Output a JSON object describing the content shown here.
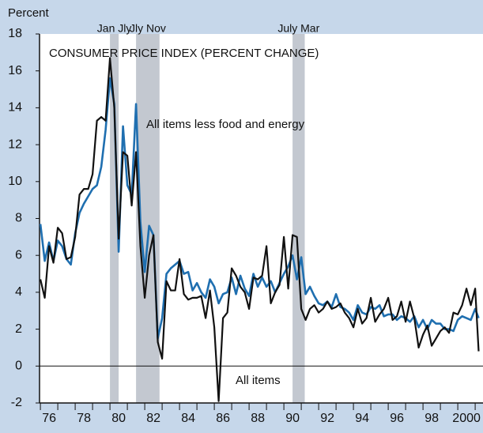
{
  "chart_data": {
    "type": "line",
    "title": "CONSUMER PRICE INDEX (PERCENT CHANGE)",
    "y_label": "Percent",
    "x": [
      1976.0,
      1976.25,
      1976.5,
      1976.75,
      1977.0,
      1977.25,
      1977.5,
      1977.75,
      1978.0,
      1978.25,
      1978.5,
      1978.75,
      1979.0,
      1979.25,
      1979.5,
      1979.75,
      1980.0,
      1980.25,
      1980.5,
      1980.75,
      1981.0,
      1981.25,
      1981.5,
      1981.75,
      1982.0,
      1982.25,
      1982.5,
      1982.75,
      1983.0,
      1983.25,
      1983.5,
      1983.75,
      1984.0,
      1984.25,
      1984.5,
      1984.75,
      1985.0,
      1985.25,
      1985.5,
      1985.75,
      1986.0,
      1986.25,
      1986.5,
      1986.75,
      1987.0,
      1987.25,
      1987.5,
      1987.75,
      1988.0,
      1988.25,
      1988.5,
      1988.75,
      1989.0,
      1989.25,
      1989.5,
      1989.75,
      1990.0,
      1990.25,
      1990.5,
      1990.75,
      1991.0,
      1991.25,
      1991.5,
      1991.75,
      1992.0,
      1992.25,
      1992.5,
      1992.75,
      1993.0,
      1993.25,
      1993.5,
      1993.75,
      1994.0,
      1994.25,
      1994.5,
      1994.75,
      1995.0,
      1995.25,
      1995.5,
      1995.75,
      1996.0,
      1996.25,
      1996.5,
      1996.75,
      1997.0,
      1997.25,
      1997.5,
      1997.75,
      1998.0,
      1998.25,
      1998.5,
      1998.75,
      1999.0,
      1999.25,
      1999.5,
      1999.75,
      2000.0,
      2000.25,
      2000.5,
      2000.75,
      2001.0,
      2001.2
    ],
    "series": [
      {
        "name": "All items",
        "color": "#111111",
        "values": [
          4.7,
          3.7,
          6.5,
          5.6,
          7.5,
          7.2,
          5.8,
          5.9,
          7.0,
          9.3,
          9.6,
          9.6,
          10.4,
          13.3,
          13.5,
          13.3,
          16.7,
          14.0,
          6.9,
          11.6,
          11.4,
          8.7,
          11.6,
          6.5,
          3.7,
          6.0,
          7.1,
          1.3,
          0.4,
          4.6,
          4.1,
          4.1,
          5.8,
          3.9,
          3.6,
          3.7,
          3.7,
          3.8,
          2.6,
          4.1,
          2.1,
          -1.9,
          2.6,
          2.9,
          5.3,
          4.9,
          4.3,
          4.0,
          3.1,
          4.8,
          4.7,
          4.9,
          6.5,
          3.4,
          4.0,
          4.4,
          7.0,
          4.2,
          7.1,
          7.0,
          3.1,
          2.5,
          3.1,
          3.3,
          2.9,
          3.1,
          3.5,
          3.1,
          3.2,
          3.4,
          2.9,
          2.6,
          2.1,
          3.1,
          2.3,
          2.6,
          3.7,
          2.4,
          2.8,
          3.1,
          3.7,
          2.5,
          2.7,
          3.5,
          2.4,
          3.5,
          2.6,
          1.0,
          1.7,
          2.2,
          1.1,
          1.5,
          1.9,
          2.1,
          1.8,
          2.9,
          2.8,
          3.3,
          4.2,
          3.3,
          4.2,
          0.8
        ]
      },
      {
        "name": "All items less food and energy",
        "color": "#1f6fb0",
        "values": [
          7.7,
          5.7,
          6.7,
          5.7,
          6.8,
          6.5,
          5.8,
          5.5,
          7.2,
          8.3,
          8.8,
          9.2,
          9.6,
          9.8,
          10.8,
          12.8,
          15.6,
          14.2,
          6.2,
          13.0,
          9.8,
          9.3,
          14.2,
          7.8,
          5.1,
          7.6,
          7.1,
          1.5,
          2.6,
          5.0,
          5.3,
          5.5,
          5.7,
          5.0,
          5.1,
          4.1,
          4.5,
          4.0,
          3.7,
          4.7,
          4.3,
          3.4,
          3.9,
          4.0,
          4.8,
          3.9,
          4.9,
          4.2,
          3.8,
          5.0,
          4.3,
          4.8,
          4.3,
          4.6,
          4.0,
          4.5,
          5.0,
          5.4,
          6.0,
          4.7,
          5.9,
          3.9,
          4.3,
          3.8,
          3.4,
          3.3,
          3.5,
          3.2,
          3.9,
          3.2,
          3.1,
          2.9,
          2.5,
          3.3,
          2.9,
          2.8,
          3.2,
          3.1,
          3.3,
          2.7,
          2.8,
          2.8,
          2.5,
          2.7,
          2.6,
          2.4,
          2.7,
          2.1,
          2.5,
          2.0,
          2.5,
          2.3,
          2.3,
          2.0,
          2.0,
          1.9,
          2.5,
          2.7,
          2.6,
          2.5,
          3.1,
          2.6
        ]
      }
    ],
    "recessions": [
      {
        "start": 1980.0,
        "end": 1980.5,
        "label": "Jan Jly"
      },
      {
        "start": 1981.5,
        "end": 1982.85,
        "label": "Jly Nov"
      },
      {
        "start": 1990.5,
        "end": 1991.2,
        "label": "July Mar"
      }
    ],
    "xlim": [
      1975.95,
      2001.45
    ],
    "ylim": [
      -2,
      18
    ],
    "yticks": [
      -2,
      0,
      2,
      4,
      6,
      8,
      10,
      12,
      14,
      16,
      18
    ],
    "xticks": [
      {
        "value": 1976.5,
        "label": "76"
      },
      {
        "value": 1978.5,
        "label": "78"
      },
      {
        "value": 1980.5,
        "label": "80"
      },
      {
        "value": 1982.5,
        "label": "82"
      },
      {
        "value": 1984.5,
        "label": "84"
      },
      {
        "value": 1986.5,
        "label": "86"
      },
      {
        "value": 1988.5,
        "label": "88"
      },
      {
        "value": 1990.5,
        "label": "90"
      },
      {
        "value": 1992.5,
        "label": "92"
      },
      {
        "value": 1994.5,
        "label": "94"
      },
      {
        "value": 1996.5,
        "label": "96"
      },
      {
        "value": 1998.5,
        "label": "98"
      },
      {
        "value": 2000.5,
        "label": "2000"
      }
    ],
    "recession_color": "#c3c8d0",
    "grid": false
  }
}
